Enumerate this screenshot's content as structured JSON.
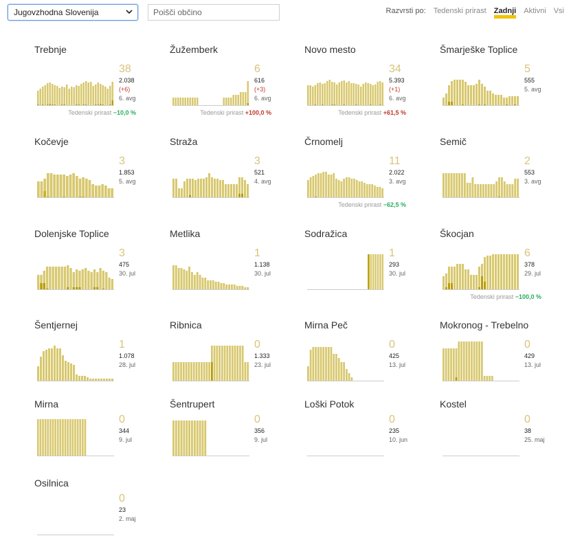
{
  "controls": {
    "region": "Jugovzhodna Slovenija",
    "search_placeholder": "Poišči občino",
    "sort_label": "Razvrsti po:",
    "sort_options": [
      "Tedenski prirast",
      "Zadnji",
      "Aktivni",
      "Vsi"
    ],
    "active_sort": "Zadnji"
  },
  "colors": {
    "bar": "#d8c86e",
    "dark": "#b89c00",
    "baseline": "#cccccc",
    "active_underline": "#f2c200"
  },
  "growth_label": "Tedenski prirast",
  "municipalities": [
    {
      "name": "Trebnje",
      "active": "38",
      "total": "2.038",
      "delta": "(+6)",
      "date": "6. avg",
      "growth": "−10,0 %",
      "growth_dir": "neg",
      "bars": [
        22,
        25,
        28,
        30,
        33,
        34,
        32,
        30,
        29,
        26,
        28,
        27,
        31,
        25,
        28,
        27,
        30,
        29,
        32,
        34,
        36,
        34,
        35,
        29,
        31,
        34,
        32,
        30,
        28,
        25,
        29,
        35
      ],
      "dark": [
        2,
        1,
        2,
        1,
        2,
        3,
        2,
        2,
        1,
        1,
        2,
        2,
        1,
        1,
        1,
        1,
        2,
        2,
        1,
        2,
        2,
        1,
        1,
        1,
        2,
        2,
        3,
        2,
        1,
        1,
        2,
        8
      ]
    },
    {
      "name": "Žužemberk",
      "active": "6",
      "total": "616",
      "delta": "(+3)",
      "date": "6. avg",
      "growth": "+100,0 %",
      "growth_dir": "pos",
      "bars": [
        12,
        12,
        12,
        12,
        12,
        12,
        12,
        12,
        12,
        12,
        12,
        0,
        0,
        0,
        0,
        0,
        0,
        0,
        0,
        0,
        0,
        12,
        12,
        12,
        12,
        16,
        16,
        16,
        20,
        20,
        20,
        36
      ],
      "dark": [
        0,
        0,
        0,
        0,
        0,
        0,
        0,
        0,
        0,
        0,
        0,
        0,
        0,
        0,
        0,
        0,
        0,
        0,
        0,
        0,
        0,
        0,
        0,
        0,
        0,
        0,
        0,
        0,
        0,
        0,
        0,
        4
      ]
    },
    {
      "name": "Novo mesto",
      "active": "34",
      "total": "5.393",
      "delta": "(+1)",
      "date": "6. avg",
      "growth": "+61,5 %",
      "growth_dir": "pos",
      "bars": [
        30,
        30,
        28,
        30,
        33,
        34,
        32,
        33,
        36,
        38,
        35,
        34,
        31,
        34,
        36,
        37,
        34,
        36,
        33,
        33,
        32,
        31,
        28,
        32,
        34,
        33,
        32,
        30,
        31,
        35,
        36,
        34
      ],
      "dark": [
        1,
        1,
        1,
        2,
        1,
        1,
        2,
        1,
        1,
        1,
        2,
        2,
        1,
        1,
        1,
        2,
        1,
        1,
        1,
        1,
        2,
        1,
        1,
        1,
        1,
        1,
        2,
        1,
        1,
        1,
        2,
        1
      ]
    },
    {
      "name": "Šmarješke Toplice",
      "active": "5",
      "total": "555",
      "delta": "",
      "date": "5. avg",
      "growth": "",
      "growth_dir": "",
      "bars": [
        12,
        18,
        30,
        36,
        38,
        38,
        38,
        38,
        35,
        30,
        30,
        30,
        32,
        38,
        32,
        28,
        22,
        22,
        18,
        16,
        16,
        16,
        12,
        12,
        14,
        14,
        14,
        14
      ],
      "dark": [
        0,
        0,
        6,
        6,
        0,
        0,
        0,
        2,
        0,
        0,
        0,
        0,
        0,
        2,
        0,
        2,
        0,
        0,
        0,
        0,
        0,
        0,
        0,
        2,
        0,
        0,
        2,
        0
      ]
    },
    {
      "name": "Kočevje",
      "active": "3",
      "total": "1.853",
      "delta": "",
      "date": "5. avg",
      "growth": "",
      "growth_dir": "",
      "bars": [
        24,
        24,
        28,
        36,
        36,
        34,
        34,
        34,
        34,
        32,
        34,
        36,
        32,
        28,
        30,
        28,
        26,
        20,
        18,
        18,
        20,
        18,
        14,
        14
      ],
      "dark": [
        0,
        0,
        10,
        2,
        0,
        0,
        0,
        0,
        2,
        0,
        0,
        0,
        0,
        2,
        2,
        0,
        0,
        0,
        0,
        0,
        0,
        0,
        0,
        0
      ],
      "dark_color": "#c8b020"
    },
    {
      "name": "Straža",
      "active": "3",
      "total": "521",
      "delta": "",
      "date": "4. avg",
      "growth": "",
      "growth_dir": "",
      "bars": [
        28,
        28,
        14,
        14,
        24,
        28,
        28,
        28,
        26,
        28,
        28,
        28,
        30,
        36,
        30,
        28,
        28,
        26,
        26,
        20,
        20,
        20,
        20,
        20,
        30,
        30,
        26,
        20
      ],
      "dark": [
        0,
        0,
        0,
        0,
        0,
        0,
        4,
        0,
        0,
        0,
        0,
        0,
        0,
        0,
        0,
        0,
        0,
        0,
        0,
        0,
        0,
        0,
        0,
        0,
        6,
        6,
        0,
        0
      ]
    },
    {
      "name": "Črnomelj",
      "active": "11",
      "total": "2.022",
      "delta": "",
      "date": "3. avg",
      "growth": "−62,5 %",
      "growth_dir": "neg",
      "bars": [
        26,
        30,
        32,
        34,
        36,
        36,
        38,
        38,
        34,
        34,
        36,
        28,
        26,
        24,
        28,
        30,
        30,
        28,
        28,
        26,
        24,
        24,
        22,
        20,
        20,
        20,
        18,
        16,
        16,
        14
      ],
      "dark": [
        0,
        0,
        0,
        2,
        0,
        0,
        0,
        0,
        0,
        0,
        0,
        0,
        0,
        0,
        0,
        0,
        0,
        0,
        0,
        0,
        0,
        0,
        0,
        0,
        0,
        0,
        0,
        0,
        0,
        0
      ]
    },
    {
      "name": "Semič",
      "active": "2",
      "total": "553",
      "delta": "",
      "date": "3. avg",
      "growth": "",
      "growth_dir": "",
      "bars": [
        36,
        36,
        36,
        36,
        36,
        36,
        36,
        36,
        36,
        22,
        22,
        30,
        20,
        20,
        20,
        20,
        20,
        20,
        20,
        20,
        24,
        30,
        30,
        24,
        20,
        20,
        20,
        28,
        28
      ],
      "dark": [
        0,
        0,
        0,
        0,
        0,
        0,
        0,
        0,
        0,
        0,
        0,
        0,
        0,
        0,
        0,
        0,
        0,
        0,
        0,
        0,
        0,
        2,
        0,
        0,
        0,
        0,
        0,
        0,
        0
      ]
    },
    {
      "name": "Dolenjske Toplice",
      "active": "3",
      "total": "475",
      "delta": "",
      "date": "30. jul",
      "growth": "",
      "growth_dir": "",
      "bars": [
        22,
        22,
        28,
        34,
        34,
        34,
        34,
        34,
        34,
        34,
        36,
        32,
        26,
        30,
        28,
        30,
        32,
        28,
        26,
        30,
        26,
        32,
        28,
        26,
        18,
        16
      ],
      "dark": [
        0,
        10,
        10,
        2,
        0,
        0,
        0,
        0,
        0,
        0,
        4,
        0,
        4,
        4,
        4,
        0,
        0,
        0,
        0,
        4,
        4,
        0,
        2,
        0,
        0,
        0
      ]
    },
    {
      "name": "Metlika",
      "active": "1",
      "total": "1.138",
      "delta": "",
      "date": "30. jul",
      "growth": "",
      "growth_dir": "",
      "bars": [
        36,
        36,
        32,
        32,
        30,
        28,
        34,
        26,
        22,
        26,
        22,
        18,
        18,
        14,
        14,
        14,
        12,
        12,
        10,
        10,
        8,
        8,
        8,
        8,
        6,
        6,
        6,
        4,
        4
      ]
    },
    {
      "name": "Sodražica",
      "active": "1",
      "total": "293",
      "delta": "",
      "date": "30. jul",
      "growth": "",
      "growth_dir": "",
      "bars": [
        0,
        0,
        0,
        0,
        0,
        0,
        0,
        0,
        0,
        0,
        0,
        0,
        0,
        0,
        0,
        0,
        0,
        0,
        0,
        0,
        0,
        0,
        0,
        0,
        0,
        0,
        52,
        52,
        52,
        52,
        52,
        52,
        52
      ],
      "dark": [
        0,
        0,
        0,
        0,
        0,
        0,
        0,
        0,
        0,
        0,
        0,
        0,
        0,
        0,
        0,
        0,
        0,
        0,
        0,
        0,
        0,
        0,
        0,
        0,
        0,
        0,
        52,
        0,
        0,
        0,
        0,
        0,
        0
      ]
    },
    {
      "name": "Škocjan",
      "active": "6",
      "total": "378",
      "delta": "",
      "date": "29. jul",
      "growth": "−100,0 %",
      "growth_dir": "neg",
      "bars": [
        20,
        24,
        34,
        34,
        34,
        38,
        38,
        38,
        30,
        30,
        22,
        22,
        22,
        34,
        38,
        48,
        50,
        50,
        52,
        52,
        52,
        52,
        52,
        52,
        52,
        52,
        52,
        52
      ],
      "dark": [
        0,
        4,
        10,
        10,
        0,
        0,
        0,
        0,
        0,
        0,
        0,
        0,
        0,
        4,
        20,
        12,
        0,
        0,
        0,
        0,
        0,
        0,
        0,
        0,
        0,
        0,
        0,
        0
      ]
    },
    {
      "name": "Šentjernej",
      "active": "1",
      "total": "1.078",
      "delta": "",
      "date": "28. jul",
      "growth": "",
      "growth_dir": "",
      "bars": [
        22,
        36,
        44,
        46,
        48,
        48,
        52,
        48,
        48,
        38,
        30,
        28,
        26,
        24,
        10,
        8,
        8,
        8,
        6,
        4,
        4,
        4,
        4,
        4,
        4,
        4,
        4,
        4
      ]
    },
    {
      "name": "Ribnica",
      "active": "0",
      "total": "1.333",
      "delta": "",
      "date": "23. jul",
      "growth": "",
      "growth_dir": "",
      "bars": [
        28,
        28,
        28,
        28,
        28,
        28,
        28,
        28,
        28,
        28,
        28,
        28,
        28,
        28,
        28,
        52,
        52,
        52,
        52,
        52,
        52,
        52,
        52,
        52,
        52,
        52,
        52,
        52,
        28,
        28
      ],
      "dark": [
        0,
        0,
        0,
        0,
        0,
        0,
        0,
        0,
        0,
        0,
        0,
        0,
        0,
        0,
        0,
        28,
        0,
        0,
        0,
        0,
        0,
        0,
        0,
        0,
        0,
        0,
        0,
        0,
        0,
        0
      ]
    },
    {
      "name": "Mirna Peč",
      "active": "0",
      "total": "425",
      "delta": "",
      "date": "13. jul",
      "growth": "",
      "growth_dir": "",
      "bars": [
        22,
        46,
        50,
        50,
        50,
        50,
        50,
        50,
        50,
        50,
        40,
        40,
        34,
        28,
        28,
        18,
        12,
        6,
        0,
        0,
        0,
        0,
        0,
        0,
        0,
        0,
        0,
        0,
        0,
        0
      ]
    },
    {
      "name": "Mokronog - Trebelno",
      "active": "0",
      "total": "429",
      "delta": "",
      "date": "13. jul",
      "growth": "",
      "growth_dir": "",
      "bars": [
        48,
        48,
        48,
        48,
        48,
        48,
        58,
        58,
        58,
        58,
        58,
        58,
        58,
        58,
        58,
        58,
        8,
        8,
        8,
        8,
        0,
        0,
        0,
        0,
        0,
        0,
        0,
        0,
        0,
        0
      ],
      "dark": [
        0,
        0,
        0,
        0,
        0,
        6,
        0,
        0,
        0,
        0,
        0,
        0,
        0,
        0,
        0,
        0,
        0,
        0,
        0,
        0,
        0,
        0,
        0,
        0,
        0,
        0,
        0,
        0,
        0,
        0
      ]
    },
    {
      "name": "Mirna",
      "active": "0",
      "total": "344",
      "delta": "",
      "date": "9. jul",
      "growth": "",
      "growth_dir": "",
      "bars": [
        54,
        54,
        54,
        54,
        54,
        54,
        54,
        54,
        54,
        54,
        54,
        54,
        54,
        54,
        54,
        54,
        54,
        54,
        54,
        54,
        0,
        0,
        0,
        0,
        0,
        0,
        0,
        0,
        0,
        0,
        0
      ]
    },
    {
      "name": "Šentrupert",
      "active": "0",
      "total": "356",
      "delta": "",
      "date": "9. jul",
      "growth": "",
      "growth_dir": "",
      "bars": [
        52,
        52,
        52,
        52,
        52,
        52,
        52,
        52,
        52,
        52,
        52,
        52,
        52,
        0,
        0,
        0,
        0,
        0,
        0,
        0,
        0,
        0,
        0,
        0,
        0,
        0,
        0,
        0,
        0
      ]
    },
    {
      "name": "Loški Potok",
      "active": "0",
      "total": "235",
      "delta": "",
      "date": "10. jun",
      "growth": "",
      "growth_dir": "",
      "bars": []
    },
    {
      "name": "Kostel",
      "active": "0",
      "total": "38",
      "delta": "",
      "date": "25. maj",
      "growth": "",
      "growth_dir": "",
      "bars": []
    },
    {
      "name": "Osilnica",
      "active": "0",
      "total": "23",
      "delta": "",
      "date": "2. maj",
      "growth": "",
      "growth_dir": "",
      "bars": []
    }
  ]
}
